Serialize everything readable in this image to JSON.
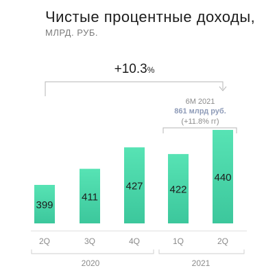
{
  "header": {
    "title": "Чистые процентные доходы,",
    "subtitle": "МЛРД. РУБ."
  },
  "annotation": {
    "growth_value": "+10.3",
    "growth_unit": "%",
    "period": "6М 2021",
    "total": "861 млрд руб.",
    "yoy": "(+11.8% гг)"
  },
  "colors": {
    "bar_top": "#57e3b4",
    "bar_bottom": "#3cc79c",
    "bracket": "#b5b5b5"
  },
  "chart_data": {
    "type": "bar",
    "title": "Чистые процентные доходы,",
    "ylabel": "МЛРД. РУБ.",
    "categories": [
      "2Q",
      "3Q",
      "4Q",
      "1Q",
      "2Q"
    ],
    "groups": [
      {
        "label": "2020",
        "categories": [
          "2Q",
          "3Q",
          "4Q"
        ]
      },
      {
        "label": "2021",
        "categories": [
          "1Q",
          "2Q"
        ]
      }
    ],
    "values": [
      399,
      411,
      427,
      422,
      440
    ],
    "value_labels": [
      "399",
      "411",
      "427",
      "422",
      "440"
    ],
    "grid": false,
    "legend": "none"
  }
}
